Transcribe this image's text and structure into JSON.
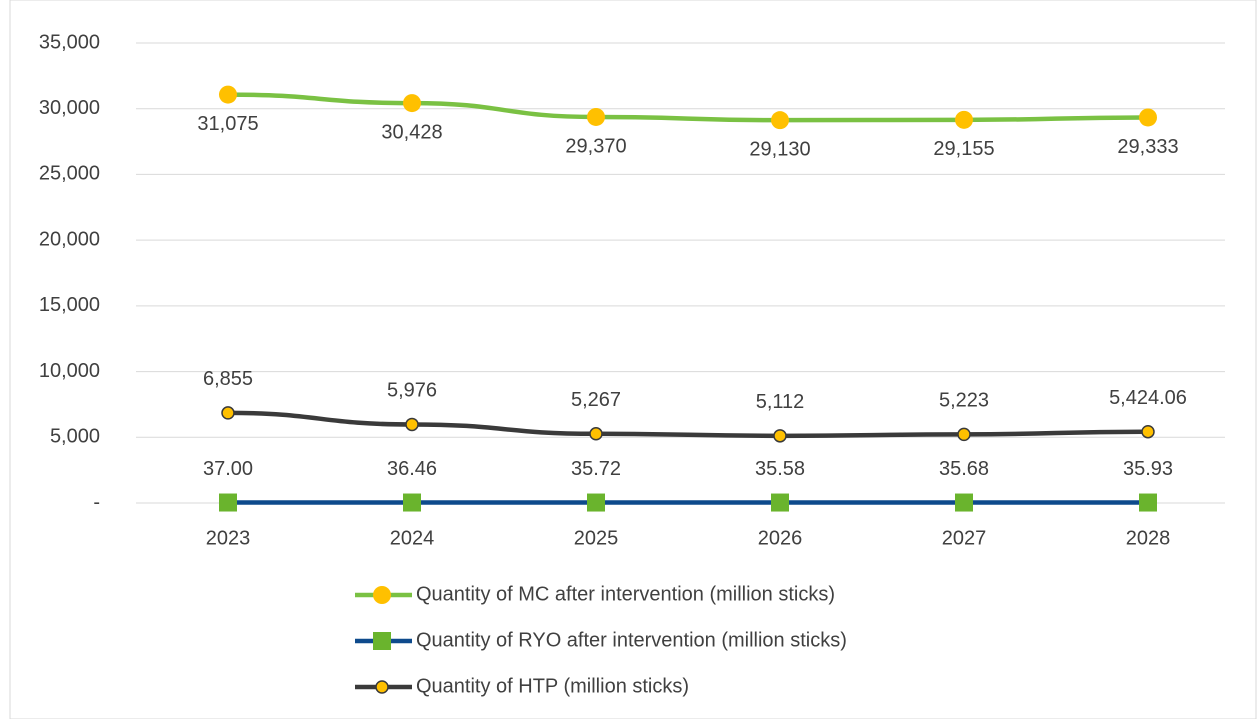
{
  "chart_data": {
    "type": "line",
    "categories": [
      "2023",
      "2024",
      "2025",
      "2026",
      "2027",
      "2028"
    ],
    "series": [
      {
        "name": "Quantity of MC after intervention (million sticks)",
        "color": "#7ac143",
        "marker": "circle",
        "marker_color": "#ffc000",
        "values": [
          31075,
          30428,
          29370,
          29130,
          29155,
          29333
        ],
        "value_labels": [
          "31,075",
          "30,428",
          "29,370",
          "29,130",
          "29,155",
          "29,333"
        ],
        "label_position": "below"
      },
      {
        "name": "Quantity of RYO after intervention (million sticks)",
        "color": "#0e4a8c",
        "marker": "square",
        "marker_color": "#6ab42d",
        "values": [
          37.0,
          36.46,
          35.72,
          35.58,
          35.68,
          35.93
        ],
        "value_labels": [
          "37.00",
          "36.46",
          "35.72",
          "35.58",
          "35.68",
          "35.93"
        ],
        "label_position": "above"
      },
      {
        "name": "Quantity of HTP (million sticks)",
        "color": "#3a3a3a",
        "marker": "small-circle",
        "marker_color": "#ffc000",
        "values": [
          6855,
          5976,
          5267,
          5112,
          5223,
          5424.06
        ],
        "value_labels": [
          "6,855",
          "5,976",
          "5,267",
          "5,112",
          "5,223",
          "5,424.06"
        ],
        "label_position": "above"
      }
    ],
    "ylim": [
      0,
      35000
    ],
    "yticks": [
      {
        "value": 0,
        "label": "-"
      },
      {
        "value": 5000,
        "label": "5,000"
      },
      {
        "value": 10000,
        "label": "10,000"
      },
      {
        "value": 15000,
        "label": "15,000"
      },
      {
        "value": 20000,
        "label": "20,000"
      },
      {
        "value": 25000,
        "label": "25,000"
      },
      {
        "value": 30000,
        "label": "30,000"
      },
      {
        "value": 35000,
        "label": "35,000"
      }
    ],
    "grid": true
  }
}
